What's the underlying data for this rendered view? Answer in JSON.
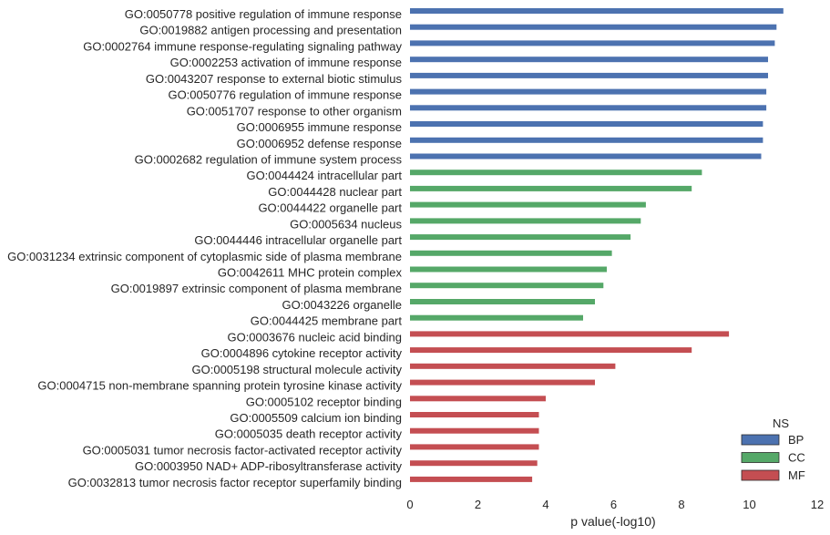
{
  "chart_data": {
    "type": "bar",
    "orientation": "horizontal",
    "xlabel": "p value(-log10)",
    "xlim": [
      0,
      12
    ],
    "xticks": [
      "0",
      "2",
      "4",
      "6",
      "8",
      "10",
      "12"
    ],
    "grid": false,
    "legend": {
      "title": "NS",
      "placement": "bottom-right",
      "entries": [
        {
          "name": "BP",
          "color": "#4c72b0"
        },
        {
          "name": "CC",
          "color": "#55a868"
        },
        {
          "name": "MF",
          "color": "#c44e52"
        }
      ]
    },
    "bars": [
      {
        "label": "GO:0050778 positive regulation of immune response",
        "group": "BP",
        "value": 11.0
      },
      {
        "label": "GO:0019882 antigen processing and presentation",
        "group": "BP",
        "value": 10.8
      },
      {
        "label": "GO:0002764 immune response-regulating signaling pathway",
        "group": "BP",
        "value": 10.75
      },
      {
        "label": "GO:0002253 activation of immune response",
        "group": "BP",
        "value": 10.55
      },
      {
        "label": "GO:0043207 response to external biotic stimulus",
        "group": "BP",
        "value": 10.55
      },
      {
        "label": "GO:0050776 regulation of immune response",
        "group": "BP",
        "value": 10.5
      },
      {
        "label": "GO:0051707 response to other organism",
        "group": "BP",
        "value": 10.5
      },
      {
        "label": "GO:0006955 immune response",
        "group": "BP",
        "value": 10.4
      },
      {
        "label": "GO:0006952 defense response",
        "group": "BP",
        "value": 10.4
      },
      {
        "label": "GO:0002682 regulation of immune system process",
        "group": "BP",
        "value": 10.35
      },
      {
        "label": "GO:0044424 intracellular part",
        "group": "CC",
        "value": 8.6
      },
      {
        "label": "GO:0044428 nuclear part",
        "group": "CC",
        "value": 8.3
      },
      {
        "label": "GO:0044422 organelle part",
        "group": "CC",
        "value": 6.95
      },
      {
        "label": "GO:0005634 nucleus",
        "group": "CC",
        "value": 6.8
      },
      {
        "label": "GO:0044446 intracellular organelle part",
        "group": "CC",
        "value": 6.5
      },
      {
        "label": "GO:0031234 extrinsic component of cytoplasmic side of plasma membrane",
        "group": "CC",
        "value": 5.95
      },
      {
        "label": "GO:0042611 MHC protein complex",
        "group": "CC",
        "value": 5.8
      },
      {
        "label": "GO:0019897 extrinsic component of plasma membrane",
        "group": "CC",
        "value": 5.7
      },
      {
        "label": "GO:0043226 organelle",
        "group": "CC",
        "value": 5.45
      },
      {
        "label": "GO:0044425 membrane part",
        "group": "CC",
        "value": 5.1
      },
      {
        "label": "GO:0003676 nucleic acid binding",
        "group": "MF",
        "value": 9.4
      },
      {
        "label": "GO:0004896 cytokine receptor activity",
        "group": "MF",
        "value": 8.3
      },
      {
        "label": "GO:0005198 structural molecule activity",
        "group": "MF",
        "value": 6.05
      },
      {
        "label": "GO:0004715 non-membrane spanning protein tyrosine kinase activity",
        "group": "MF",
        "value": 5.45
      },
      {
        "label": "GO:0005102 receptor binding",
        "group": "MF",
        "value": 4.0
      },
      {
        "label": "GO:0005509 calcium ion binding",
        "group": "MF",
        "value": 3.8
      },
      {
        "label": "GO:0005035 death receptor activity",
        "group": "MF",
        "value": 3.8
      },
      {
        "label": "GO:0005031 tumor necrosis factor-activated receptor activity",
        "group": "MF",
        "value": 3.8
      },
      {
        "label": "GO:0003950 NAD+ ADP-ribosyltransferase activity",
        "group": "MF",
        "value": 3.75
      },
      {
        "label": "GO:0032813 tumor necrosis factor receptor superfamily binding",
        "group": "MF",
        "value": 3.6
      }
    ]
  }
}
